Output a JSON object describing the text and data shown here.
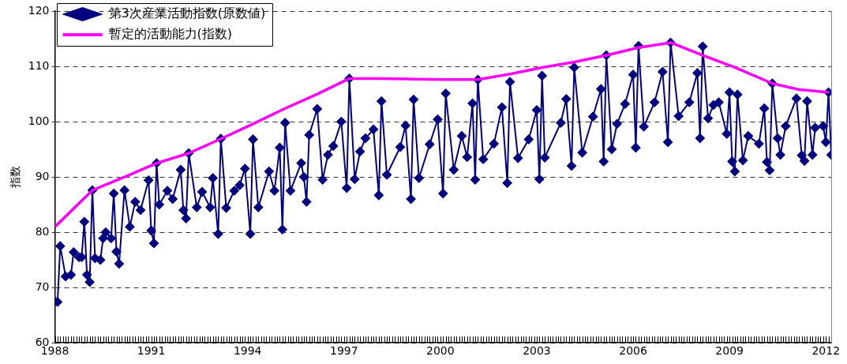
{
  "chart_data": {
    "type": "line",
    "ylabel": "指数",
    "ylim": [
      60,
      120
    ],
    "yticks": [
      60,
      70,
      80,
      90,
      100,
      110,
      120
    ],
    "xlim": [
      "1988-01",
      "2012-03"
    ],
    "xticks": [
      "1988",
      "1991",
      "1994",
      "1997",
      "2000",
      "2003",
      "2006",
      "2009",
      "2012"
    ],
    "grid": "y",
    "legend": "top left",
    "line_style": "solid",
    "series": [
      {
        "name": "第3次産業活動指数(原数値)",
        "color": "#000080",
        "marker": "diamond",
        "x": [
          "1988-01",
          "1988-02",
          "1988-03",
          "1988-05",
          "1988-07",
          "1988-08",
          "1988-10",
          "1988-11",
          "1988-12",
          "1989-01",
          "1989-02",
          "1989-03",
          "1989-04",
          "1989-06",
          "1989-07",
          "1989-08",
          "1989-10",
          "1989-11",
          "1989-12",
          "1990-01",
          "1990-03",
          "1990-05",
          "1990-07",
          "1990-09",
          "1990-12",
          "1991-01",
          "1991-02",
          "1991-03",
          "1991-04",
          "1991-07",
          "1991-09",
          "1991-12",
          "1992-01",
          "1992-02",
          "1992-03",
          "1992-06",
          "1992-08",
          "1992-11",
          "1992-12",
          "1993-02",
          "1993-03",
          "1993-05",
          "1993-08",
          "1993-10",
          "1993-12",
          "1994-02",
          "1994-03",
          "1994-05",
          "1994-09",
          "1994-11",
          "1995-01",
          "1995-02",
          "1995-03",
          "1995-05",
          "1995-09",
          "1995-10",
          "1995-11",
          "1995-12",
          "1996-03",
          "1996-05",
          "1996-07",
          "1996-09",
          "1996-12",
          "1997-02",
          "1997-03",
          "1997-05",
          "1997-07",
          "1997-09",
          "1997-12",
          "1998-02",
          "1998-03",
          "1998-05",
          "1998-10",
          "1998-12",
          "1999-02",
          "1999-03",
          "1999-05",
          "1999-09",
          "1999-12",
          "2000-02",
          "2000-03",
          "2000-06",
          "2000-09",
          "2000-11",
          "2001-01",
          "2001-02",
          "2001-03",
          "2001-05",
          "2001-09",
          "2001-12",
          "2002-02",
          "2002-03",
          "2002-06",
          "2002-10",
          "2003-01",
          "2003-02",
          "2003-03",
          "2003-04",
          "2003-10",
          "2003-12",
          "2004-02",
          "2004-03",
          "2004-06",
          "2004-10",
          "2005-01",
          "2005-02",
          "2005-03",
          "2005-05",
          "2005-07",
          "2005-10",
          "2006-01",
          "2006-02",
          "2006-03",
          "2006-05",
          "2006-09",
          "2006-12",
          "2007-02",
          "2007-03",
          "2007-06",
          "2007-10",
          "2008-01",
          "2008-02",
          "2008-03",
          "2008-05",
          "2008-07",
          "2008-09",
          "2008-12",
          "2009-01",
          "2009-02",
          "2009-03",
          "2009-04",
          "2009-06",
          "2009-08",
          "2009-12",
          "2010-02",
          "2010-03",
          "2010-04",
          "2010-05",
          "2010-07",
          "2010-08",
          "2010-10",
          "2011-02",
          "2011-04",
          "2011-05",
          "2011-06",
          "2011-08",
          "2011-09",
          "2011-12",
          "2012-01",
          "2012-02",
          "2012-03"
        ],
        "values": [
          67.5,
          67.4,
          77.5,
          72,
          72.3,
          76.4,
          75.5,
          75.5,
          81.9,
          72.3,
          71,
          87.6,
          75.3,
          75,
          78.9,
          80,
          78.9,
          87,
          76.5,
          74.3,
          87.6,
          81,
          85.5,
          84,
          89.4,
          80.3,
          78,
          92.5,
          85,
          87.5,
          86,
          91.3,
          84,
          82.5,
          94.3,
          84.5,
          87.3,
          84.5,
          89.8,
          79.7,
          96.9,
          84.4,
          87.5,
          88.5,
          91.5,
          79.7,
          96.8,
          84.5,
          91,
          87.5,
          95.3,
          80.5,
          99.8,
          87.5,
          92.5,
          90,
          85.5,
          97.6,
          102.3,
          89.5,
          94,
          95.6,
          100,
          88,
          107.8,
          89.6,
          94.6,
          97,
          98.6,
          86.7,
          103.7,
          90.4,
          95.4,
          99.3,
          86,
          104,
          89.8,
          95.9,
          100.4,
          87,
          105.1,
          91.3,
          97.4,
          93.6,
          103.3,
          89.5,
          107.6,
          93.2,
          96,
          102.6,
          88.9,
          107.2,
          93.4,
          96.8,
          102.1,
          89.6,
          108.3,
          93.5,
          99.8,
          104.1,
          92,
          109.8,
          94.4,
          100.9,
          105.9,
          92.8,
          112,
          95,
          99.6,
          103.2,
          108.5,
          95.3,
          113.7,
          99.1,
          103.5,
          109,
          96.3,
          114.3,
          101,
          103.5,
          108.8,
          97,
          113.6,
          100.6,
          103,
          103.5,
          97.8,
          105.3,
          92.8,
          91,
          104.9,
          93,
          97.4,
          96,
          102.4,
          92.7,
          91.2,
          106.9,
          97,
          94,
          99.2,
          104.2,
          93.9,
          92.9,
          103.7,
          94,
          98.9,
          99.2,
          96.3,
          105.3,
          94
        ]
      },
      {
        "name": "暫定的活動能力(指数)",
        "color": "#ff00ff",
        "marker": "none",
        "x": [
          "1988-01",
          "1989-03",
          "1990-03",
          "1991-03",
          "1992-03",
          "1993-03",
          "1994-03",
          "1995-03",
          "1996-03",
          "1997-03",
          "1998-03",
          "1999-03",
          "2000-03",
          "2001-03",
          "2002-03",
          "2003-03",
          "2004-03",
          "2005-03",
          "2006-03",
          "2007-03",
          "2008-03",
          "2009-03",
          "2010-05",
          "2011-03",
          "2012-02"
        ],
        "values": [
          81,
          87.6,
          90,
          92.5,
          94.3,
          96.9,
          99.6,
          102.4,
          105,
          107.8,
          107.8,
          107.7,
          107.6,
          107.6,
          108.6,
          109.8,
          110.8,
          112,
          113.4,
          114.3,
          112,
          109.8,
          106.9,
          105.8,
          105.3
        ]
      }
    ]
  }
}
